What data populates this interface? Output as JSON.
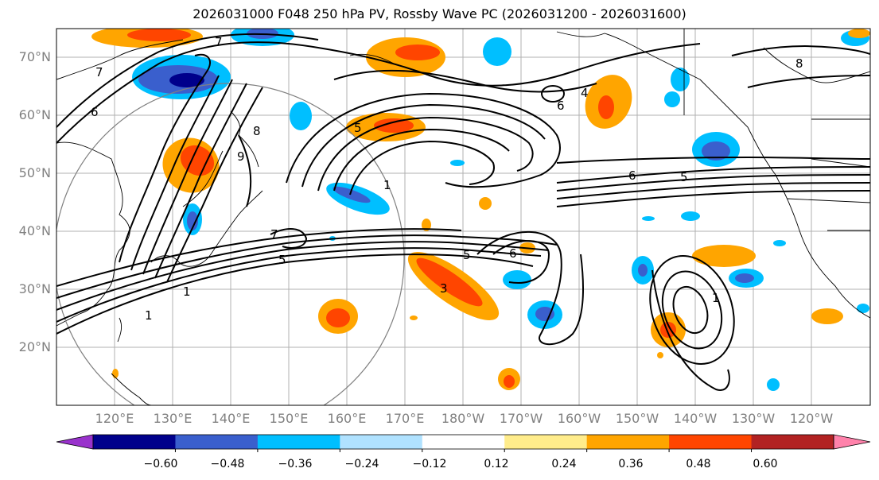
{
  "title": "2026031000 F048 250 hPa PV, Rossby Wave PC (2026031200 - 2026031600)",
  "lat_labels": [
    "70°N",
    "60°N",
    "50°N",
    "40°N",
    "30°N",
    "20°N"
  ],
  "lon_labels": [
    "120°E",
    "130°E",
    "140°E",
    "150°E",
    "160°E",
    "170°E",
    "180°W",
    "170°W",
    "160°W",
    "150°W",
    "140°W",
    "130°W",
    "120°W"
  ],
  "colorbar": {
    "ticks": [
      "−0.60",
      "−0.48",
      "−0.36",
      "−0.24",
      "−0.12",
      "0.12",
      "0.24",
      "0.36",
      "0.48",
      "0.60"
    ],
    "colors": [
      "#9932cc",
      "#00008b",
      "#3a5fcd",
      "#00bfff",
      "#b0e2ff",
      "#ffffff",
      "#ffec8b",
      "#ffa500",
      "#ff4500",
      "#b22222",
      "#ff82ab"
    ]
  },
  "contour_labels": [
    "7",
    "6",
    "8",
    "9",
    "1",
    "5",
    "6",
    "5",
    "1",
    "4",
    "3",
    "6",
    "7",
    "5",
    "1",
    "1",
    "6",
    "5",
    "7",
    "8"
  ]
}
